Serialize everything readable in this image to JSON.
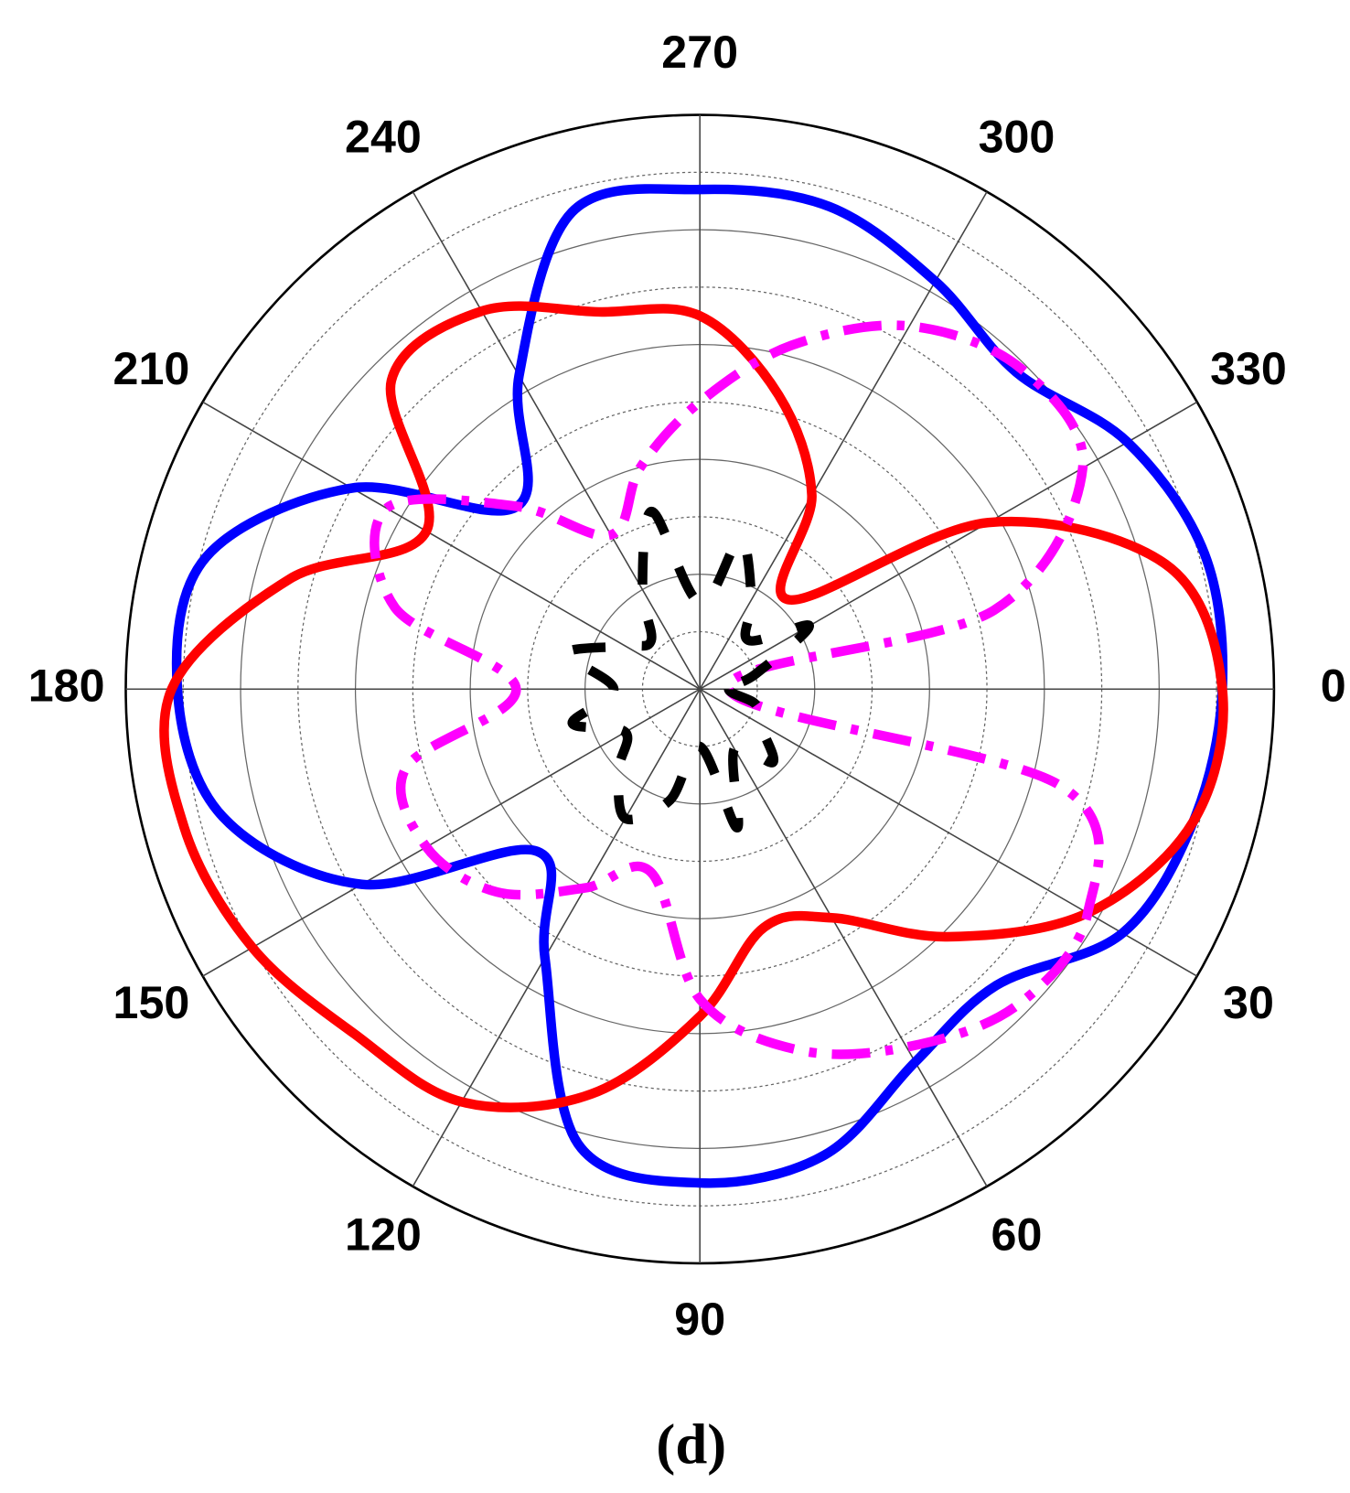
{
  "chart_data": {
    "type": "polar",
    "caption": "(d)",
    "theta": [
      0,
      15,
      30,
      45,
      60,
      75,
      90,
      105,
      120,
      135,
      150,
      165,
      180,
      195,
      210,
      225,
      240,
      255,
      270,
      285,
      300,
      315,
      330,
      345
    ],
    "series": [
      {
        "color": "#0000ff",
        "dash": "solid",
        "values": [
          9.1,
          8.9,
          8.5,
          7.3,
          7.5,
          8.4,
          8.6,
          8.2,
          5.4,
          4.0,
          6.8,
          8.6,
          9.1,
          8.9,
          7.0,
          4.5,
          6.3,
          8.6,
          8.7,
          8.7,
          8.2,
          7.8,
          8.6,
          9.1
        ]
      },
      {
        "color": "#ff0000",
        "dash": "solid",
        "values": [
          9.1,
          8.9,
          7.8,
          6.1,
          4.6,
          4.3,
          5.7,
          7.3,
          8.3,
          8.5,
          9.0,
          9.3,
          9.2,
          7.4,
          5.5,
          7.6,
          7.6,
          6.8,
          6.5,
          5.3,
          3.9,
          2.2,
          5.8,
          8.4
        ]
      },
      {
        "color": "#ff00ff",
        "dash": "dashdot",
        "values": [
          0.5,
          6.5,
          7.8,
          7.8,
          7.2,
          6.5,
          5.4,
          3.3,
          4.0,
          5.0,
          5.5,
          5.3,
          3.2,
          5.5,
          6.3,
          4.5,
          3.1,
          4.0,
          5.0,
          6.2,
          7.3,
          7.9,
          7.7,
          5.3
        ]
      },
      {
        "color": "#000000",
        "dash": "dash",
        "values": [
          0.5,
          1.0,
          1.2,
          1.8,
          1.2,
          2.5,
          1.0,
          2.0,
          2.6,
          2.0,
          1.5,
          2.3,
          1.5,
          2.4,
          1.5,
          1.2,
          2.0,
          3.2,
          1.5,
          2.7,
          1.8,
          1.2,
          2.2,
          1.0
        ]
      }
    ],
    "rlim": [
      0,
      10
    ],
    "rticks": [
      1,
      2,
      3,
      4,
      5,
      6,
      7,
      8,
      9,
      10
    ],
    "thetaticks": [
      0,
      30,
      60,
      90,
      120,
      150,
      180,
      210,
      240,
      270,
      300,
      330
    ],
    "direction": "clockwise",
    "grid": true
  }
}
